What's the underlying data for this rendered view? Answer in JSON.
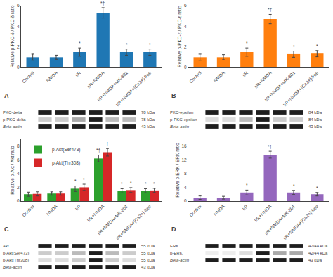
{
  "chart_data": [
    {
      "type": "bar",
      "title": "A",
      "categories": [
        "Control",
        "NMDA",
        "I/R",
        "I/R+NMDA",
        "I/R+NMDA+MK-801",
        "I/R+NMDA+[Ca2+]-free"
      ],
      "y_label": "Relative p-PKC-δ / PKC-δ ratio",
      "values": [
        1.0,
        1.0,
        1.5,
        5.3,
        1.5,
        1.5
      ],
      "errors": [
        0.3,
        0.2,
        0.4,
        0.5,
        0.3,
        0.3
      ],
      "stars": [
        null,
        null,
        "*",
        "*†",
        "*",
        "*"
      ],
      "ylim": [
        0,
        6
      ],
      "yticks": [
        0,
        2,
        4,
        6
      ],
      "grid": false,
      "annotations": [
        [
          "PKC-delta",
          "78 kDa"
        ],
        [
          "p-PKC-delta",
          "78 kDa"
        ],
        [
          "Beta-actin",
          "43 kDa"
        ]
      ]
    },
    {
      "type": "bar",
      "title": "B",
      "categories": [
        "Control",
        "NMDA",
        "I/R",
        "I/R+NMDA",
        "I/R+NMDA+MK-801",
        "I/R+NMDA+[Ca2+]-free"
      ],
      "y_label": "Relative p-PKC-ε / PKC-ε ratio",
      "values": [
        1.0,
        1.0,
        1.5,
        4.7,
        1.3,
        1.35
      ],
      "errors": [
        0.3,
        0.25,
        0.4,
        0.45,
        0.3,
        0.3
      ],
      "stars": [
        null,
        null,
        "*",
        "*†",
        "*",
        "*"
      ],
      "ylim": [
        0,
        6
      ],
      "yticks": [
        0,
        2,
        4,
        6
      ],
      "grid": false,
      "annotations": [
        [
          "PKC-epsilon",
          "84 kDa"
        ],
        [
          "p-PKC-epsilon",
          "84 kDa"
        ],
        [
          "Beta-actin",
          "43 kDa"
        ]
      ]
    },
    {
      "type": "bar",
      "title": "C",
      "categories": [
        "Control",
        "NMDA",
        "I/R",
        "I/R+NMDA",
        "I/R+NMDA+MK-801",
        "I/R+NMDA+[Ca2+]-free"
      ],
      "y_label": "Relative p-Akt / Akt ratio",
      "series": [
        {
          "name": "p-Akt(Ser473)",
          "values": [
            1.0,
            1.1,
            1.8,
            6.2,
            1.5,
            1.5
          ],
          "errors": [
            0.3,
            0.25,
            0.4,
            0.5,
            0.3,
            0.3
          ],
          "stars": [
            null,
            null,
            "*",
            "*†",
            "*",
            "*"
          ]
        },
        {
          "name": "p-Akt(Thr308)",
          "values": [
            1.05,
            1.1,
            2.0,
            7.1,
            1.6,
            1.55
          ],
          "errors": [
            0.3,
            0.25,
            0.45,
            0.55,
            0.35,
            0.3
          ],
          "stars": [
            null,
            null,
            "*",
            "†",
            "*",
            "*"
          ]
        }
      ],
      "ylim": [
        0,
        9
      ],
      "yticks": [
        0,
        2,
        4,
        6,
        8
      ],
      "grid": false,
      "legend": "upper left",
      "annotations": [
        [
          "Akt",
          "55 kDa"
        ],
        [
          "p-Akt(Ser473)",
          "55 kDa"
        ],
        [
          "p-Akt(Thr308)",
          "55 kDa"
        ],
        [
          "Beta-actin",
          "43 kDa"
        ]
      ]
    },
    {
      "type": "bar",
      "title": "D",
      "categories": [
        "Control",
        "NMDA",
        "I/R",
        "I/R+NMDA",
        "I/R+NMDA+MK-801",
        "I/R+NMDA+[Ca2+]-free"
      ],
      "y_label": "Relative p-ERK / ERK ratio",
      "values": [
        1.0,
        1.0,
        2.5,
        13.5,
        2.5,
        2.0
      ],
      "errors": [
        0.5,
        0.4,
        0.7,
        1.0,
        0.6,
        0.5
      ],
      "stars": [
        null,
        null,
        "*",
        "*†",
        "*",
        "*"
      ],
      "ylim": [
        0,
        18
      ],
      "yticks": [
        0,
        4,
        8,
        12,
        16
      ],
      "grid": false,
      "annotations": [
        [
          "ERK",
          "42/44 kDa"
        ],
        [
          "p-ERK",
          "42/44 kDa"
        ],
        [
          "Beta-actin",
          "43 kDa"
        ]
      ]
    }
  ]
}
